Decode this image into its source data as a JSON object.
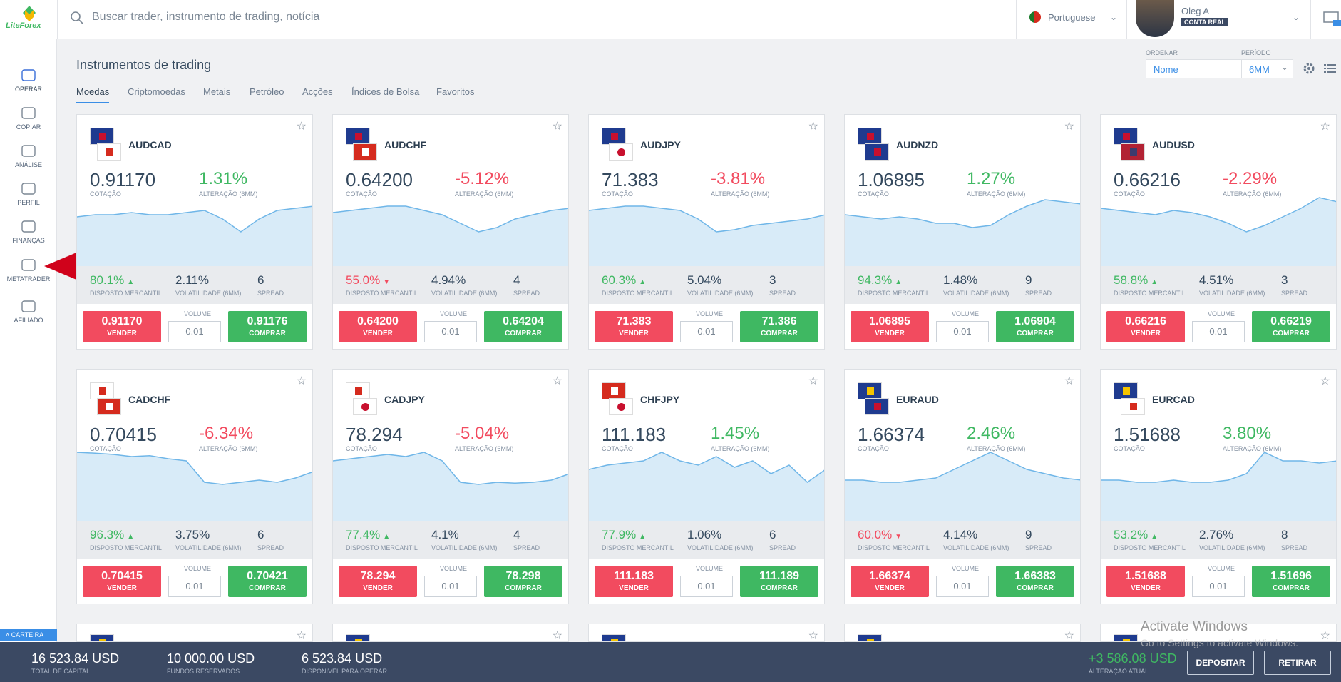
{
  "header": {
    "logo": "LiteForex",
    "search_placeholder": "Buscar trader, instrumento de trading, notícia",
    "language": "Portuguese",
    "user_name": "Oleg A",
    "account_type": "CONTA REAL"
  },
  "sidebar": {
    "items": [
      "OPERAR",
      "COPIAR",
      "ANÁLISE",
      "PERFIL",
      "FINANÇAS",
      "METATRADER",
      "AFILIADO"
    ],
    "wallet": "CARTEIRA"
  },
  "page": {
    "title": "Instrumentos de trading",
    "tabs": [
      "Moedas",
      "Criptomoedas",
      "Metais",
      "Petróleo",
      "Acções",
      "Índices de Bolsa",
      "Favoritos"
    ],
    "sort_label": "ORDENAR",
    "sort_value": "Nome",
    "period_label": "PERÍODO",
    "period_value": "6MM"
  },
  "labels": {
    "price": "COTAÇÃO",
    "change": "ALTERAÇÃO (6MM)",
    "sentiment": "DISPOSTO MERCANTIL",
    "volatility": "VOLATILIDADE (6MM)",
    "spread": "SPREAD",
    "sell": "VENDER",
    "volume": "VOLUME",
    "buy": "COMPRAR",
    "volume_value": "0.01"
  },
  "cards": [
    {
      "symbol": "AUDCAD",
      "price": "0.91170",
      "change": "1.31%",
      "sentiment": "80.1%",
      "sentiment_trend": "up",
      "volatility": "2.11%",
      "spread": "6",
      "sell": "0.91170",
      "buy": "0.91176"
    },
    {
      "symbol": "AUDCHF",
      "price": "0.64200",
      "change": "-5.12%",
      "sentiment": "55.0%",
      "sentiment_trend": "down",
      "volatility": "4.94%",
      "spread": "4",
      "sell": "0.64200",
      "buy": "0.64204"
    },
    {
      "symbol": "AUDJPY",
      "price": "71.383",
      "change": "-3.81%",
      "sentiment": "60.3%",
      "sentiment_trend": "up",
      "volatility": "5.04%",
      "spread": "3",
      "sell": "71.383",
      "buy": "71.386"
    },
    {
      "symbol": "AUDNZD",
      "price": "1.06895",
      "change": "1.27%",
      "sentiment": "94.3%",
      "sentiment_trend": "up",
      "volatility": "1.48%",
      "spread": "9",
      "sell": "1.06895",
      "buy": "1.06904"
    },
    {
      "symbol": "AUDUSD",
      "price": "0.66216",
      "change": "-2.29%",
      "sentiment": "58.8%",
      "sentiment_trend": "up",
      "volatility": "4.51%",
      "spread": "3",
      "sell": "0.66216",
      "buy": "0.66219"
    },
    {
      "symbol": "CADCHF",
      "price": "0.70415",
      "change": "-6.34%",
      "sentiment": "96.3%",
      "sentiment_trend": "up",
      "volatility": "3.75%",
      "spread": "6",
      "sell": "0.70415",
      "buy": "0.70421"
    },
    {
      "symbol": "CADJPY",
      "price": "78.294",
      "change": "-5.04%",
      "sentiment": "77.4%",
      "sentiment_trend": "up",
      "volatility": "4.1%",
      "spread": "4",
      "sell": "78.294",
      "buy": "78.298"
    },
    {
      "symbol": "CHFJPY",
      "price": "111.183",
      "change": "1.45%",
      "sentiment": "77.9%",
      "sentiment_trend": "up",
      "volatility": "1.06%",
      "spread": "6",
      "sell": "111.183",
      "buy": "111.189"
    },
    {
      "symbol": "EURAUD",
      "price": "1.66374",
      "change": "2.46%",
      "sentiment": "60.0%",
      "sentiment_trend": "down",
      "volatility": "4.14%",
      "spread": "9",
      "sell": "1.66374",
      "buy": "1.66383"
    },
    {
      "symbol": "EURCAD",
      "price": "1.51688",
      "change": "3.80%",
      "sentiment": "53.2%",
      "sentiment_trend": "up",
      "volatility": "2.76%",
      "spread": "8",
      "sell": "1.51688",
      "buy": "1.51696"
    }
  ],
  "footer": {
    "total": "16 523.84 USD",
    "total_label": "TOTAL DE CAPITAL",
    "reserved": "10 000.00 USD",
    "reserved_label": "FUNDOS RESERVADOS",
    "available": "6 523.84 USD",
    "available_label": "DISPONÍVEL PARA OPERAR",
    "change": "+3 586.08 USD",
    "change_label": "ALTERAÇÃO ATUAL",
    "deposit": "DEPOSITAR",
    "withdraw": "RETIRAR"
  },
  "watermark": {
    "title": "Activate Windows",
    "text": "Go to Settings to activate Windows."
  }
}
